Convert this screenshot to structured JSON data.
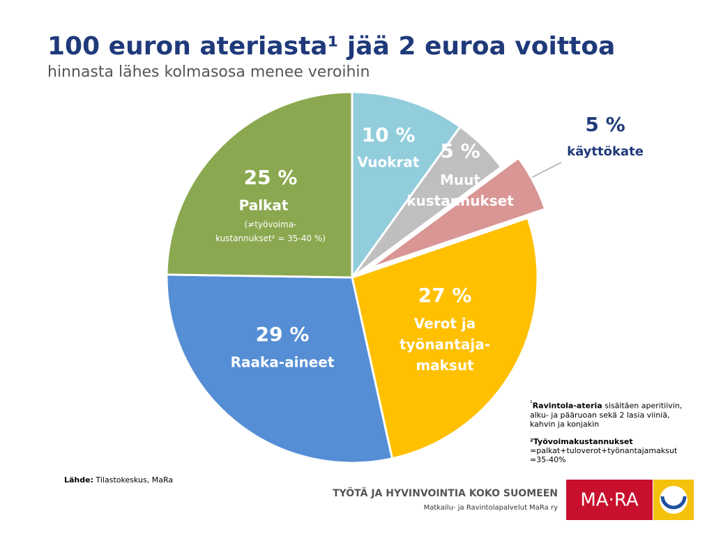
{
  "chart_data": {
    "type": "pie",
    "title": "100 euron ateriasta¹ jää 2 euroa voittoa",
    "subtitle": "hinnasta lähes kolmasosa menee veroihin",
    "categories": [
      "Vuokrat",
      "Muut\nkustannukset",
      "käyttökate",
      "Verot ja\ntyönantaja-\nmaksut",
      "Raaka-aineet",
      "Palkat"
    ],
    "values": [
      10,
      5,
      5,
      27,
      29,
      25
    ],
    "value_labels": [
      "10 %",
      "5 %",
      "5 %",
      "27 %",
      "29 %",
      "25 %"
    ],
    "colors": [
      "#92cddc",
      "#bfbfbf",
      "#d99694",
      "#ffc000",
      "#558ed5",
      "#8aa84f"
    ],
    "exploded": [
      false,
      false,
      true,
      false,
      false,
      false
    ],
    "palkat_note": "(≠työvoima-\nkustannukset² = 35-40 %)"
  },
  "footnotes": [
    {
      "marker": "¹",
      "term": "Ravintola-ateria",
      "text": " sisältäen aperitiivin, alku- ja pääruoan sekä 2 lasia viiniä, kahvin ja konjakin"
    },
    {
      "marker": "²",
      "term": "Työvoimakustannukset",
      "text": "=palkat+tuloverot+työnantajamaksut =35-40%"
    }
  ],
  "source": {
    "label": "Lähde:",
    "text": " Tilastokeskus, MaRa"
  },
  "footer": {
    "tagline": "TYÖTÄ JA HYVINVOINTIA KOKO SUOMEEN",
    "organization": "Matkailu- ja Ravintolapalvelut MaRa ry",
    "logo": "MA·RA"
  }
}
